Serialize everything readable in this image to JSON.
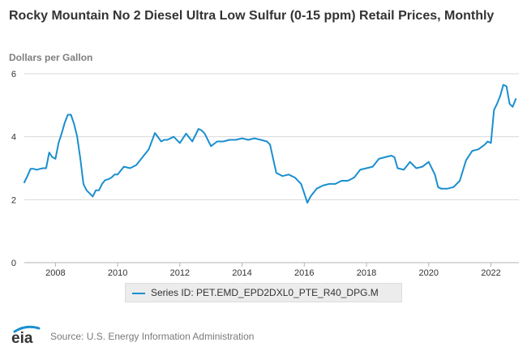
{
  "chart_data": {
    "type": "line",
    "title": "Rocky Mountain No 2 Diesel Ultra Low Sulfur (0-15 ppm) Retail Prices, Monthly",
    "ylabel": "Dollars per Gallon",
    "xlabel": "",
    "xlim": [
      2007.0,
      2022.9
    ],
    "ylim": [
      0,
      6
    ],
    "y_ticks": [
      0,
      2,
      4,
      6
    ],
    "x_ticks": [
      2008,
      2010,
      2012,
      2014,
      2016,
      2018,
      2020,
      2022
    ],
    "grid": "horizontal",
    "legend_position": "bottom",
    "series": [
      {
        "name": "Series ID: PET.EMD_EPD2DXL0_PTE_R40_DPG.M",
        "color": "#1b8fcf",
        "x": [
          2007.0,
          2007.1,
          2007.2,
          2007.3,
          2007.4,
          2007.5,
          2007.6,
          2007.7,
          2007.8,
          2007.9,
          2008.0,
          2008.1,
          2008.2,
          2008.3,
          2008.4,
          2008.5,
          2008.6,
          2008.7,
          2008.8,
          2008.9,
          2009.0,
          2009.1,
          2009.2,
          2009.3,
          2009.4,
          2009.5,
          2009.6,
          2009.7,
          2009.8,
          2009.9,
          2010.0,
          2010.2,
          2010.4,
          2010.6,
          2010.8,
          2011.0,
          2011.2,
          2011.4,
          2011.5,
          2011.6,
          2011.8,
          2012.0,
          2012.2,
          2012.4,
          2012.6,
          2012.7,
          2012.8,
          2013.0,
          2013.2,
          2013.4,
          2013.6,
          2013.8,
          2014.0,
          2014.2,
          2014.4,
          2014.6,
          2014.8,
          2014.9,
          2015.0,
          2015.1,
          2015.2,
          2015.3,
          2015.5,
          2015.7,
          2015.9,
          2016.0,
          2016.1,
          2016.2,
          2016.4,
          2016.6,
          2016.8,
          2017.0,
          2017.2,
          2017.4,
          2017.6,
          2017.8,
          2018.0,
          2018.2,
          2018.4,
          2018.6,
          2018.8,
          2018.9,
          2019.0,
          2019.2,
          2019.4,
          2019.6,
          2019.8,
          2020.0,
          2020.2,
          2020.3,
          2020.4,
          2020.6,
          2020.8,
          2021.0,
          2021.2,
          2021.4,
          2021.6,
          2021.8,
          2021.9,
          2022.0,
          2022.1,
          2022.2,
          2022.3,
          2022.4,
          2022.5,
          2022.6,
          2022.7,
          2022.8
        ],
        "values": [
          2.55,
          2.75,
          2.98,
          2.98,
          2.95,
          2.98,
          3.0,
          3.0,
          3.5,
          3.35,
          3.3,
          3.8,
          4.1,
          4.45,
          4.7,
          4.7,
          4.4,
          4.0,
          3.3,
          2.5,
          2.3,
          2.2,
          2.1,
          2.3,
          2.3,
          2.5,
          2.62,
          2.65,
          2.7,
          2.8,
          2.8,
          3.05,
          3.0,
          3.1,
          3.35,
          3.6,
          4.12,
          3.85,
          3.9,
          3.9,
          4.0,
          3.8,
          4.1,
          3.85,
          4.25,
          4.2,
          4.1,
          3.7,
          3.85,
          3.85,
          3.9,
          3.9,
          3.95,
          3.9,
          3.95,
          3.9,
          3.85,
          3.75,
          3.3,
          2.85,
          2.8,
          2.75,
          2.8,
          2.7,
          2.5,
          2.2,
          1.9,
          2.1,
          2.35,
          2.45,
          2.5,
          2.5,
          2.6,
          2.6,
          2.7,
          2.95,
          3.0,
          3.05,
          3.3,
          3.35,
          3.4,
          3.35,
          3.0,
          2.95,
          3.2,
          3.0,
          3.05,
          3.2,
          2.8,
          2.4,
          2.35,
          2.35,
          2.4,
          2.6,
          3.25,
          3.55,
          3.6,
          3.75,
          3.85,
          3.8,
          4.85,
          5.05,
          5.3,
          5.65,
          5.6,
          5.05,
          4.95,
          5.2
        ]
      }
    ]
  },
  "legend": {
    "label": "Series ID: PET.EMD_EPD2DXL0_PTE_R40_DPG.M"
  },
  "footer": {
    "logo_text": "eia",
    "source": "Source: U.S. Energy Information Administration"
  }
}
